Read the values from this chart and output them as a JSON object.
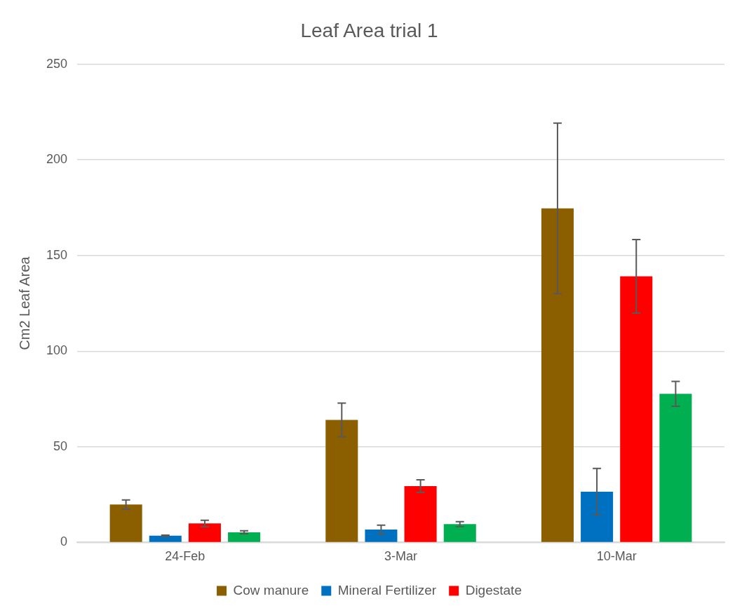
{
  "chart_data": {
    "type": "bar",
    "title": "Leaf Area trial 1",
    "ylabel": "Cm2 Leaf Area",
    "categories": [
      "24-Feb",
      "3-Mar",
      "10-Mar"
    ],
    "series": [
      {
        "name": "Cow manure",
        "color": "#8b5e00",
        "values": [
          19.8,
          64,
          174.6
        ],
        "errors": [
          2.4,
          8.8,
          44.6
        ]
      },
      {
        "name": "Mineral Fertilizer",
        "color": "#0070c0",
        "values": [
          3.5,
          6.7,
          26.5
        ],
        "errors": [
          0.3,
          2.3,
          12.2
        ]
      },
      {
        "name": "Digestate",
        "color": "#ff0000",
        "values": [
          9.9,
          29.4,
          139.1
        ],
        "errors": [
          1.7,
          3.3,
          19.2
        ]
      },
      {
        "color": "#00b050",
        "values": [
          5.3,
          9.6,
          77.7
        ],
        "errors": [
          0.8,
          1.3,
          6.5
        ]
      }
    ],
    "ylim": [
      0,
      250
    ],
    "yticks": [
      0,
      50,
      100,
      150,
      200,
      250
    ],
    "grid": "y",
    "legend": "bottom"
  }
}
